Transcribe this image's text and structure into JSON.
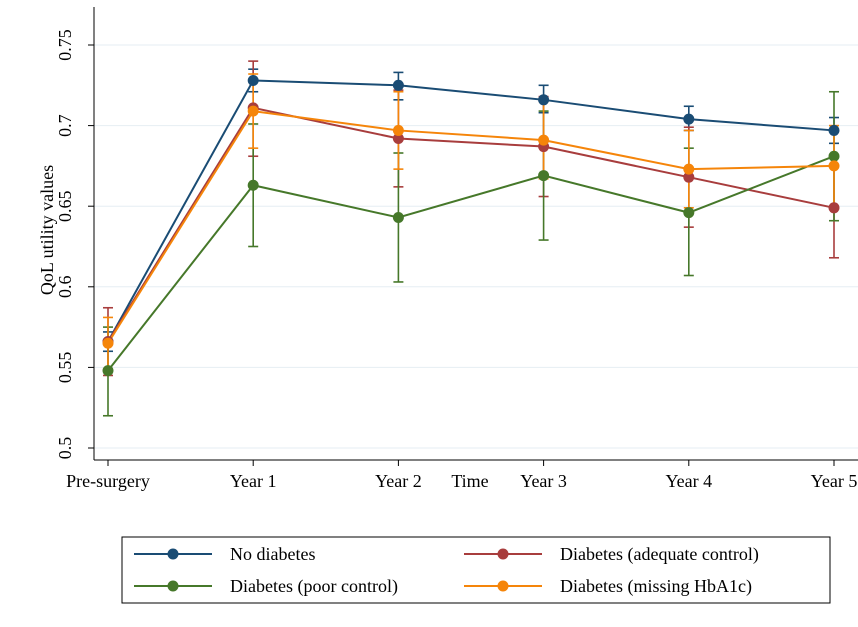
{
  "chart_data": {
    "type": "line",
    "title": "",
    "xlabel": "Time",
    "ylabel": "QoL utility  values",
    "categories": [
      "Pre-surgery",
      "Year 1",
      "Year 2",
      "Year 3",
      "Year 4",
      "Year 5"
    ],
    "ylim": [
      0.5,
      0.75
    ],
    "yticks": [
      "0.5",
      "0.55",
      "0.6",
      "0.65",
      "0.7",
      "0.75"
    ],
    "grid": true,
    "legend_position": "bottom",
    "series": [
      {
        "name": "No diabetes",
        "color": "#1a4c74",
        "values": [
          0.566,
          0.728,
          0.725,
          0.716,
          0.704,
          0.697
        ],
        "ci_low": [
          0.56,
          0.721,
          0.716,
          0.708,
          0.697,
          0.689
        ],
        "ci_high": [
          0.572,
          0.735,
          0.733,
          0.725,
          0.712,
          0.705
        ]
      },
      {
        "name": "Diabetes (adequate control)",
        "color": "#a83d3d",
        "values": [
          0.566,
          0.711,
          0.692,
          0.687,
          0.668,
          0.649
        ],
        "ci_low": [
          0.545,
          0.681,
          0.662,
          0.656,
          0.637,
          0.618
        ],
        "ci_high": [
          0.587,
          0.74,
          0.722,
          0.718,
          0.699,
          0.681
        ]
      },
      {
        "name": "Diabetes (poor control)",
        "color": "#46782a",
        "values": [
          0.548,
          0.663,
          0.643,
          0.669,
          0.646,
          0.681
        ],
        "ci_low": [
          0.52,
          0.625,
          0.603,
          0.629,
          0.607,
          0.641
        ],
        "ci_high": [
          0.575,
          0.701,
          0.683,
          0.709,
          0.686,
          0.721
        ]
      },
      {
        "name": "Diabetes (missing HbA1c)",
        "color": "#f5850a",
        "values": [
          0.565,
          0.709,
          0.697,
          0.691,
          0.673,
          0.675
        ],
        "ci_low": [
          0.549,
          0.686,
          0.673,
          0.667,
          0.649,
          0.65
        ],
        "ci_high": [
          0.581,
          0.732,
          0.721,
          0.715,
          0.697,
          0.7
        ]
      }
    ]
  }
}
